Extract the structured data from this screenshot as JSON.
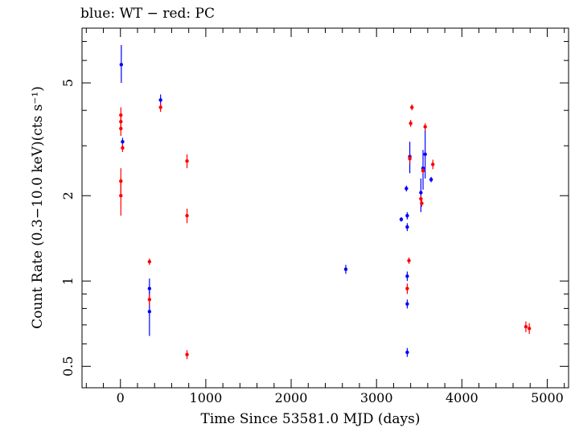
{
  "chart_data": {
    "type": "scatter",
    "title": "blue: WT − red: PC",
    "xlabel": "Time Since 53581.0 MJD (days)",
    "ylabel": "Count Rate (0.3−10.0 keV)(cts s⁻¹)",
    "xlim": [
      -450,
      5250
    ],
    "ylim": [
      0.42,
      7.8
    ],
    "yscale": "log",
    "xticks": [
      0,
      1000,
      2000,
      3000,
      4000,
      5000
    ],
    "yticks": [
      0.5,
      1,
      2,
      5
    ],
    "grid": false,
    "series": [
      {
        "name": "WT",
        "color": "#0000ff",
        "points": [
          {
            "x": 10,
            "y": 5.8,
            "ylo": 5.0,
            "yhi": 6.8
          },
          {
            "x": 25,
            "y": 3.1,
            "ylo": 3.0,
            "yhi": 3.2
          },
          {
            "x": 340,
            "y": 0.94,
            "ylo": 0.88,
            "yhi": 1.02
          },
          {
            "x": 340,
            "y": 0.78,
            "ylo": 0.64,
            "yhi": 0.92
          },
          {
            "x": 470,
            "y": 4.35,
            "ylo": 4.15,
            "yhi": 4.55
          },
          {
            "x": 2640,
            "y": 1.1,
            "ylo": 1.06,
            "yhi": 1.14
          },
          {
            "x": 3290,
            "y": 1.65,
            "ylo": 1.62,
            "yhi": 1.68
          },
          {
            "x": 3350,
            "y": 2.12,
            "ylo": 2.07,
            "yhi": 2.17
          },
          {
            "x": 3360,
            "y": 1.7,
            "ylo": 1.65,
            "yhi": 1.75
          },
          {
            "x": 3360,
            "y": 1.55,
            "ylo": 1.5,
            "yhi": 1.6
          },
          {
            "x": 3360,
            "y": 1.04,
            "ylo": 1.0,
            "yhi": 1.08
          },
          {
            "x": 3360,
            "y": 0.83,
            "ylo": 0.8,
            "yhi": 0.86
          },
          {
            "x": 3360,
            "y": 0.56,
            "ylo": 0.54,
            "yhi": 0.58
          },
          {
            "x": 3390,
            "y": 2.75,
            "ylo": 2.4,
            "yhi": 3.1
          },
          {
            "x": 3520,
            "y": 2.05,
            "ylo": 1.75,
            "yhi": 2.3
          },
          {
            "x": 3545,
            "y": 2.5,
            "ylo": 2.1,
            "yhi": 2.9
          },
          {
            "x": 3570,
            "y": 2.8,
            "ylo": 2.3,
            "yhi": 3.4
          },
          {
            "x": 3640,
            "y": 2.28,
            "ylo": 2.23,
            "yhi": 2.33
          }
        ]
      },
      {
        "name": "PC",
        "color": "#ff0000",
        "points": [
          {
            "x": 5,
            "y": 3.85,
            "ylo": 3.65,
            "yhi": 4.1
          },
          {
            "x": 5,
            "y": 3.65,
            "ylo": 3.45,
            "yhi": 3.9
          },
          {
            "x": 5,
            "y": 3.45,
            "ylo": 3.25,
            "yhi": 3.7
          },
          {
            "x": 5,
            "y": 2.25,
            "ylo": 2.0,
            "yhi": 2.5
          },
          {
            "x": 5,
            "y": 2.0,
            "ylo": 1.7,
            "yhi": 2.3
          },
          {
            "x": 25,
            "y": 2.95,
            "ylo": 2.85,
            "yhi": 3.05
          },
          {
            "x": 340,
            "y": 1.17,
            "ylo": 1.14,
            "yhi": 1.2
          },
          {
            "x": 340,
            "y": 0.86,
            "ylo": 0.82,
            "yhi": 0.9
          },
          {
            "x": 470,
            "y": 4.1,
            "ylo": 3.95,
            "yhi": 4.25
          },
          {
            "x": 780,
            "y": 2.65,
            "ylo": 2.5,
            "yhi": 2.8
          },
          {
            "x": 780,
            "y": 1.7,
            "ylo": 1.6,
            "yhi": 1.8
          },
          {
            "x": 780,
            "y": 0.55,
            "ylo": 0.53,
            "yhi": 0.57
          },
          {
            "x": 3360,
            "y": 0.94,
            "ylo": 0.9,
            "yhi": 0.98
          },
          {
            "x": 3380,
            "y": 1.18,
            "ylo": 1.15,
            "yhi": 1.21
          },
          {
            "x": 3390,
            "y": 2.7,
            "ylo": 2.6,
            "yhi": 2.8
          },
          {
            "x": 3400,
            "y": 3.6,
            "ylo": 3.5,
            "yhi": 3.7
          },
          {
            "x": 3415,
            "y": 4.1,
            "ylo": 4.0,
            "yhi": 4.2
          },
          {
            "x": 3520,
            "y": 1.95,
            "ylo": 1.9,
            "yhi": 2.0
          },
          {
            "x": 3530,
            "y": 1.88,
            "ylo": 1.83,
            "yhi": 1.93
          },
          {
            "x": 3545,
            "y": 2.45,
            "ylo": 2.4,
            "yhi": 2.5
          },
          {
            "x": 3570,
            "y": 3.5,
            "ylo": 3.4,
            "yhi": 3.6
          },
          {
            "x": 3660,
            "y": 2.58,
            "ylo": 2.48,
            "yhi": 2.68
          },
          {
            "x": 4750,
            "y": 0.69,
            "ylo": 0.66,
            "yhi": 0.72
          },
          {
            "x": 4790,
            "y": 0.68,
            "ylo": 0.65,
            "yhi": 0.71
          }
        ]
      }
    ]
  }
}
